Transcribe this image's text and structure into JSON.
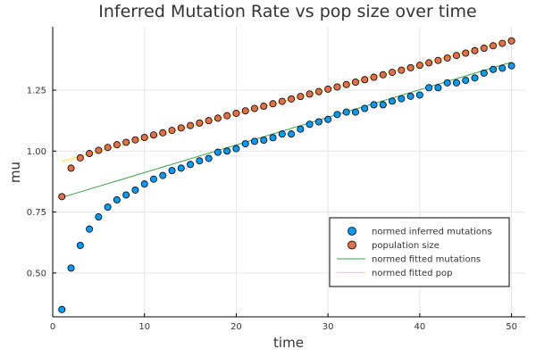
{
  "chart_data": {
    "type": "scatter",
    "title": "Inferred Mutation Rate vs pop size over time",
    "xlabel": "time",
    "ylabel": "mu",
    "xlim": [
      0,
      51.5
    ],
    "ylim": [
      0.32,
      1.51
    ],
    "xticks": [
      0,
      10,
      20,
      30,
      40,
      50
    ],
    "yticks": [
      0.5,
      0.75,
      1.0,
      1.25
    ],
    "ytick_labels": [
      "0.50",
      "0.75",
      "1.00",
      "1.25"
    ],
    "grid": true,
    "legend_position": "bottom-right",
    "series": [
      {
        "name": "normed inferred mutations",
        "kind": "scatter",
        "color": "#009af9",
        "x": [
          1,
          2,
          3,
          4,
          5,
          6,
          7,
          8,
          9,
          10,
          11,
          12,
          13,
          14,
          15,
          16,
          17,
          18,
          19,
          20,
          21,
          22,
          23,
          24,
          25,
          26,
          27,
          28,
          29,
          30,
          31,
          32,
          33,
          34,
          35,
          36,
          37,
          38,
          39,
          40,
          41,
          42,
          43,
          44,
          45,
          46,
          47,
          48,
          49,
          50
        ],
        "y": [
          0.35,
          0.52,
          0.613,
          0.68,
          0.73,
          0.77,
          0.8,
          0.82,
          0.84,
          0.865,
          0.885,
          0.9,
          0.92,
          0.93,
          0.945,
          0.96,
          0.97,
          0.995,
          1.0,
          1.01,
          1.03,
          1.04,
          1.045,
          1.055,
          1.07,
          1.07,
          1.09,
          1.11,
          1.12,
          1.13,
          1.15,
          1.16,
          1.16,
          1.175,
          1.19,
          1.19,
          1.205,
          1.215,
          1.225,
          1.23,
          1.26,
          1.26,
          1.28,
          1.28,
          1.29,
          1.3,
          1.32,
          1.335,
          1.34,
          1.35
        ]
      },
      {
        "name": "population size",
        "kind": "scatter",
        "color": "#e26f46",
        "x": [
          1,
          2,
          3,
          4,
          5,
          6,
          7,
          8,
          9,
          10,
          11,
          12,
          13,
          14,
          15,
          16,
          17,
          18,
          19,
          20,
          21,
          22,
          23,
          24,
          25,
          26,
          27,
          28,
          29,
          30,
          31,
          32,
          33,
          34,
          35,
          36,
          37,
          38,
          39,
          40,
          41,
          42,
          43,
          44,
          45,
          46,
          47,
          48,
          49,
          50
        ],
        "y": [
          0.813,
          0.93,
          0.972,
          0.99,
          1.003,
          1.015,
          1.026,
          1.036,
          1.046,
          1.056,
          1.066,
          1.075,
          1.085,
          1.095,
          1.105,
          1.115,
          1.125,
          1.135,
          1.145,
          1.155,
          1.165,
          1.175,
          1.184,
          1.194,
          1.204,
          1.214,
          1.224,
          1.234,
          1.244,
          1.254,
          1.263,
          1.273,
          1.283,
          1.293,
          1.303,
          1.313,
          1.323,
          1.332,
          1.342,
          1.352,
          1.362,
          1.372,
          1.382,
          1.392,
          1.402,
          1.412,
          1.422,
          1.432,
          1.442,
          1.452
        ]
      },
      {
        "name": "normed fitted mutations",
        "kind": "line",
        "color": "#3ea44e",
        "x": [
          1,
          50
        ],
        "y": [
          0.81,
          1.365
        ]
      },
      {
        "name": "normed fitted pop",
        "kind": "line",
        "color": "#fde725",
        "x": [
          1,
          50
        ],
        "y": [
          0.958,
          1.458
        ]
      }
    ]
  }
}
